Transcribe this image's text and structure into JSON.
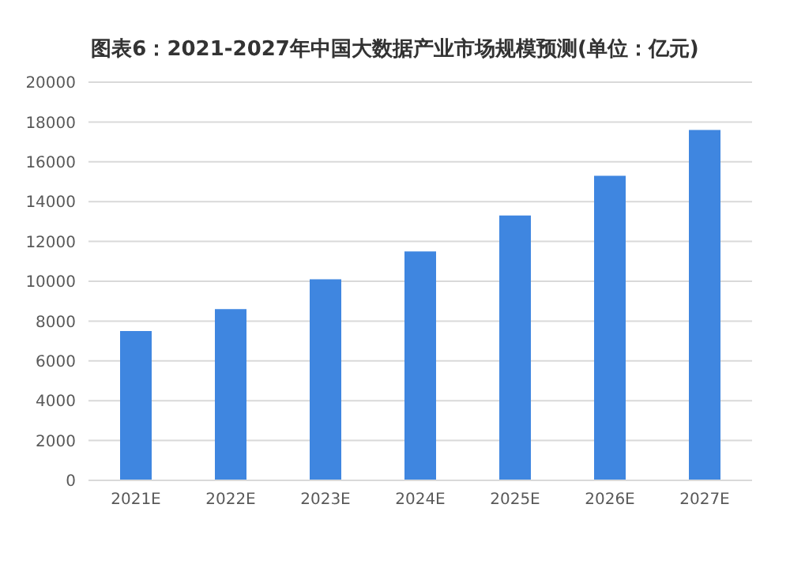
{
  "chart_data": {
    "type": "bar",
    "title": "图表6：2021-2027年中国大数据产业市场规模预测(单位：亿元)",
    "categories": [
      "2021E",
      "2022E",
      "2023E",
      "2024E",
      "2025E",
      "2026E",
      "2027E"
    ],
    "values": [
      7500,
      8600,
      10100,
      11500,
      13300,
      15300,
      17600
    ],
    "color": "#3f86e0",
    "ylim": [
      0,
      20000
    ],
    "yticks": [
      0,
      2000,
      4000,
      6000,
      8000,
      10000,
      12000,
      14000,
      16000,
      18000,
      20000
    ],
    "grid": "y"
  }
}
